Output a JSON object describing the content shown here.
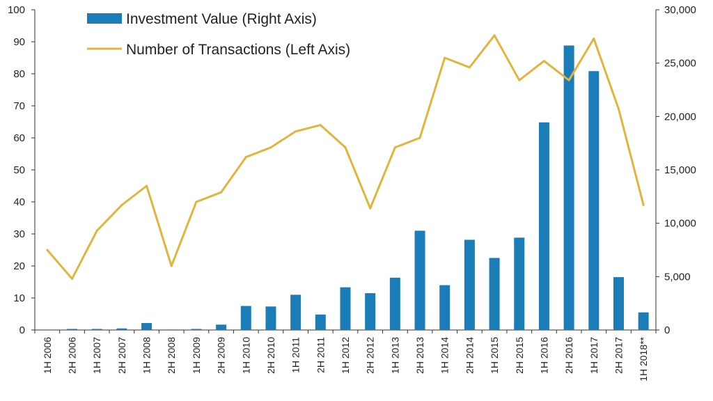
{
  "chart_data": {
    "type": "bar",
    "title": "",
    "categories": [
      "1H 2006",
      "2H 2006",
      "1H 2007",
      "2H 2007",
      "1H 2008",
      "2H 2008",
      "1H 2009",
      "2H 2009",
      "1H 2010",
      "2H 2010",
      "1H 2011",
      "2H 2011",
      "1H 2012",
      "2H 2012",
      "1H 2013",
      "2H 2013",
      "1H 2014",
      "2H 2014",
      "1H 2015",
      "2H 2015",
      "1H 2016",
      "2H 2016",
      "1H 2017",
      "2H 2017",
      "1H 2018**"
    ],
    "series": [
      {
        "name": "Investment Value (Right Axis)",
        "kind": "bar",
        "axis": "right",
        "color": "#1b7db8",
        "values": [
          0,
          100,
          100,
          150,
          650,
          50,
          100,
          500,
          2250,
          2200,
          3300,
          1450,
          4000,
          3450,
          4900,
          9300,
          4200,
          8450,
          6750,
          8650,
          19450,
          26650,
          24250,
          4950,
          1650
        ]
      },
      {
        "name": "Number of Transactions (Left Axis)",
        "kind": "line",
        "axis": "left",
        "color": "#e3b43c",
        "values": [
          25,
          16,
          31,
          39,
          45,
          20,
          40,
          43,
          54,
          57,
          62,
          64,
          57,
          38,
          57,
          60,
          85,
          82,
          92,
          78,
          84,
          78,
          91,
          69,
          39
        ]
      }
    ],
    "y_left": {
      "lim": [
        0,
        100
      ],
      "ticks": [
        "0",
        "10",
        "20",
        "30",
        "40",
        "50",
        "60",
        "70",
        "80",
        "90",
        "100"
      ]
    },
    "y_right": {
      "lim": [
        0,
        30000
      ],
      "ticks": [
        "0",
        "5,000",
        "10,000",
        "15,000",
        "20,000",
        "25,000",
        "30,000"
      ]
    },
    "xlabel": "",
    "ylabel": "",
    "grid": false,
    "legend_position": "top-left"
  }
}
